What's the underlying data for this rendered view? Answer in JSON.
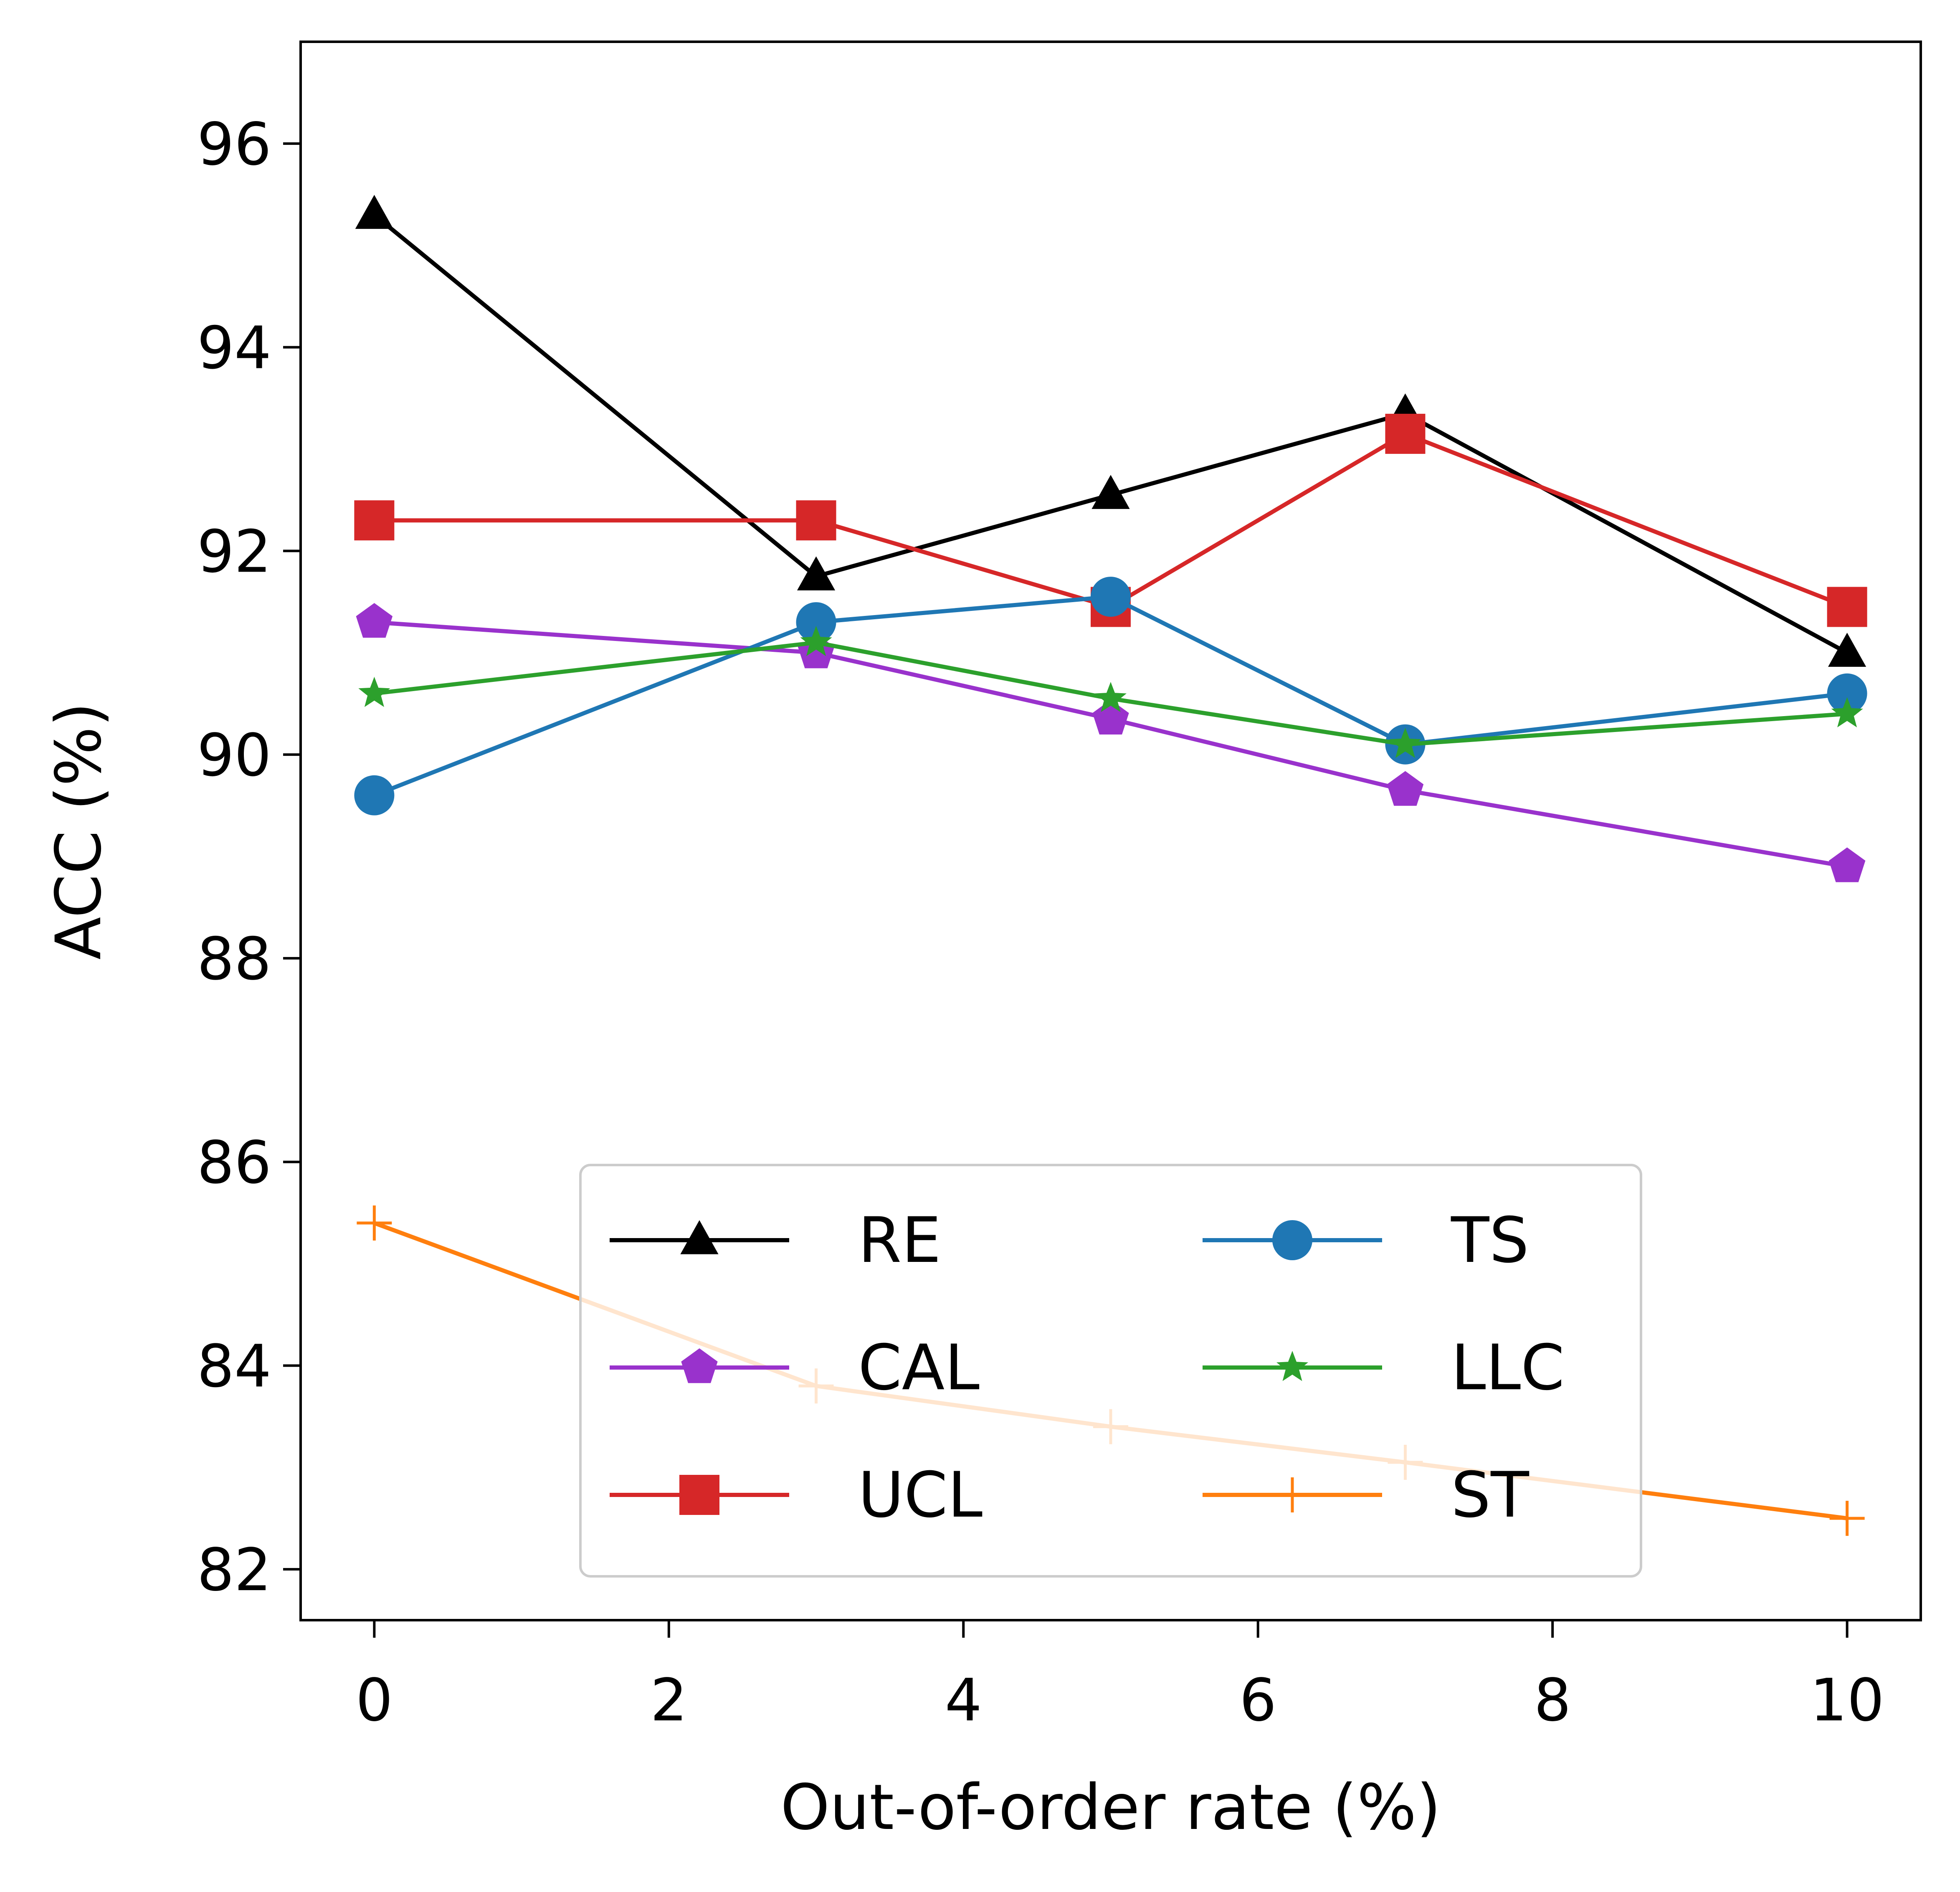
{
  "chart_data": {
    "type": "line",
    "title": "",
    "xlabel": "Out-of-order rate (%)",
    "ylabel": "ACC (%)",
    "xlim": [
      -0.5,
      10.5
    ],
    "ylim": [
      81.5,
      97.0
    ],
    "xticks": [
      0,
      2,
      4,
      6,
      8,
      10
    ],
    "yticks": [
      82,
      84,
      86,
      88,
      90,
      92,
      94,
      96
    ],
    "grid": false,
    "legend_position": "lower-center",
    "x": [
      0,
      3,
      5,
      7,
      10
    ],
    "series": [
      {
        "name": "RE",
        "values": [
          95.3,
          91.75,
          92.55,
          93.35,
          91.0
        ],
        "color": "#000000",
        "marker": "triangle"
      },
      {
        "name": "CAL",
        "values": [
          91.3,
          91.0,
          90.35,
          89.65,
          88.9
        ],
        "color": "#9932CC",
        "marker": "pentagon"
      },
      {
        "name": "UCL",
        "values": [
          92.3,
          92.3,
          91.45,
          93.15,
          91.45
        ],
        "color": "#D62728",
        "marker": "square"
      },
      {
        "name": "TS",
        "values": [
          89.6,
          91.3,
          91.55,
          90.1,
          90.6
        ],
        "color": "#1F77B4",
        "marker": "circle"
      },
      {
        "name": "LLC",
        "values": [
          90.6,
          91.1,
          90.55,
          90.1,
          90.4
        ],
        "color": "#2CA02C",
        "marker": "star"
      },
      {
        "name": "ST",
        "values": [
          85.4,
          83.8,
          83.4,
          83.05,
          82.5
        ],
        "color": "#FF7F0E",
        "marker": "plus"
      }
    ]
  }
}
